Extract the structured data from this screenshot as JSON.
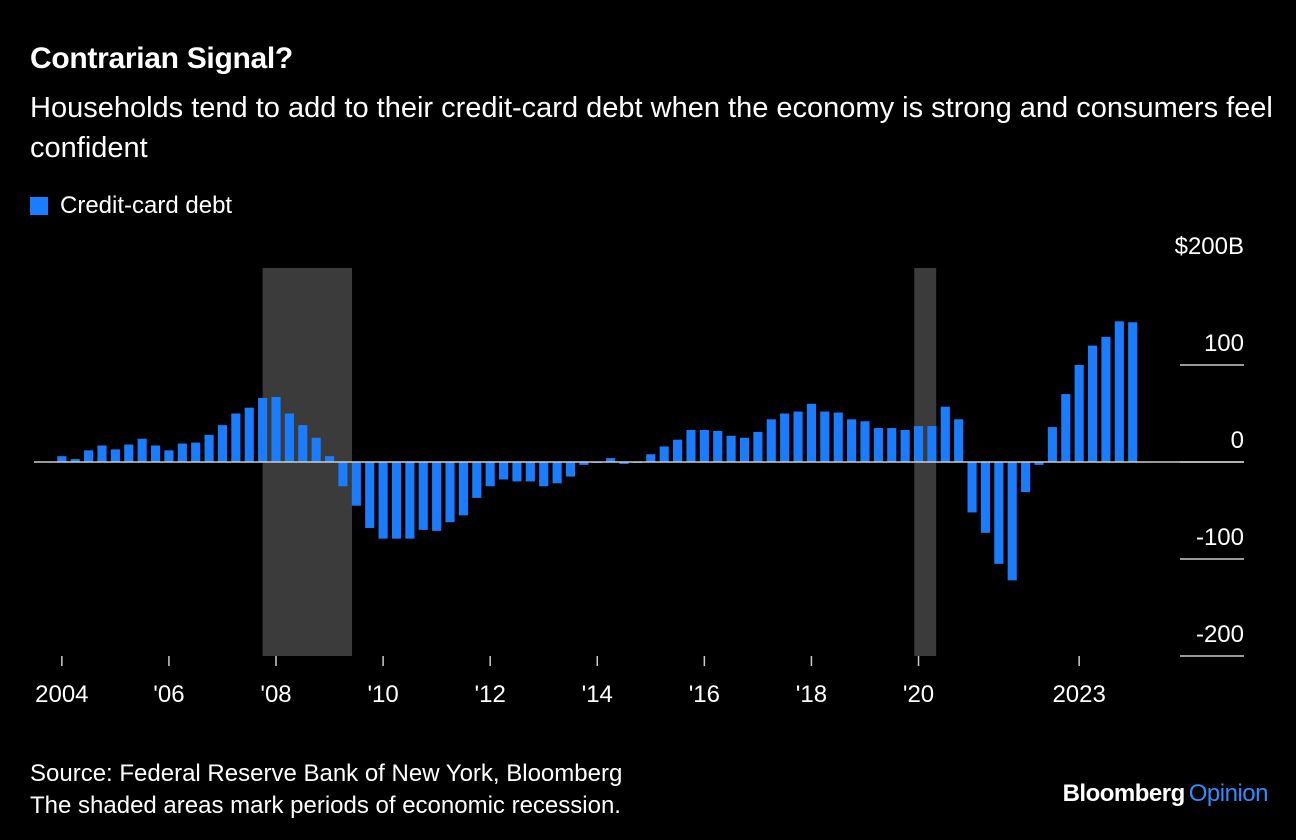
{
  "header": {
    "title": "Contrarian Signal?",
    "subtitle": "Households tend to add to their credit-card debt when the economy is strong and consumers feel confident"
  },
  "legend": {
    "label": "Credit-card debt",
    "color": "#1a7dff"
  },
  "footer": {
    "source": "Source: Federal Reserve Bank of New York, Bloomberg",
    "note": "The shaded areas mark periods of economic recession."
  },
  "brand": {
    "name": "Bloomberg",
    "accent": "Opinion",
    "accent_color": "#2f8cff"
  },
  "colors": {
    "bar": "#1a7dff",
    "recession": "#3b3b3b",
    "axis": "#cccccc",
    "text": "#ffffff"
  },
  "chart_data": {
    "type": "bar",
    "title": "Contrarian Signal?",
    "series": [
      {
        "name": "Credit-card debt",
        "unit": "$B year-over-year change"
      }
    ],
    "x_start": 2004.0,
    "x_step": 0.25,
    "values": [
      6,
      3,
      12,
      17,
      13,
      18,
      24,
      17,
      12,
      19,
      20,
      28,
      38,
      50,
      56,
      66,
      67,
      50,
      38,
      25,
      6,
      -25,
      -45,
      -68,
      -79,
      -79,
      -79,
      -70,
      -71,
      -62,
      -55,
      -37,
      -25,
      -18,
      -20,
      -20,
      -25,
      -22,
      -15,
      -3,
      -1,
      4,
      -2,
      -1,
      8,
      16,
      23,
      33,
      33,
      32,
      27,
      25,
      31,
      44,
      50,
      52,
      60,
      52,
      51,
      44,
      42,
      35,
      35,
      33,
      37,
      37,
      57,
      44,
      -52,
      -73,
      -105,
      -122,
      -31,
      -3,
      36,
      70,
      100,
      120,
      129,
      145,
      144
    ],
    "recessions": [
      [
        2007.75,
        2009.42
      ],
      [
        2019.92,
        2020.33
      ]
    ],
    "y_ticks": [
      {
        "value": 200,
        "label": "$200B"
      },
      {
        "value": 100,
        "label": "100"
      },
      {
        "value": 0,
        "label": "0"
      },
      {
        "value": -100,
        "label": "-100"
      },
      {
        "value": -200,
        "label": "-200"
      }
    ],
    "x_ticks": [
      {
        "value": 2004,
        "label": "2004"
      },
      {
        "value": 2006,
        "label": "'06"
      },
      {
        "value": 2008,
        "label": "'08"
      },
      {
        "value": 2010,
        "label": "'10"
      },
      {
        "value": 2012,
        "label": "'12"
      },
      {
        "value": 2014,
        "label": "'14"
      },
      {
        "value": 2016,
        "label": "'16"
      },
      {
        "value": 2018,
        "label": "'18"
      },
      {
        "value": 2020,
        "label": "'20"
      },
      {
        "value": 2023,
        "label": "2023"
      }
    ],
    "ylim": [
      -200,
      200
    ],
    "xlim": [
      2003.48,
      2024.51
    ]
  }
}
